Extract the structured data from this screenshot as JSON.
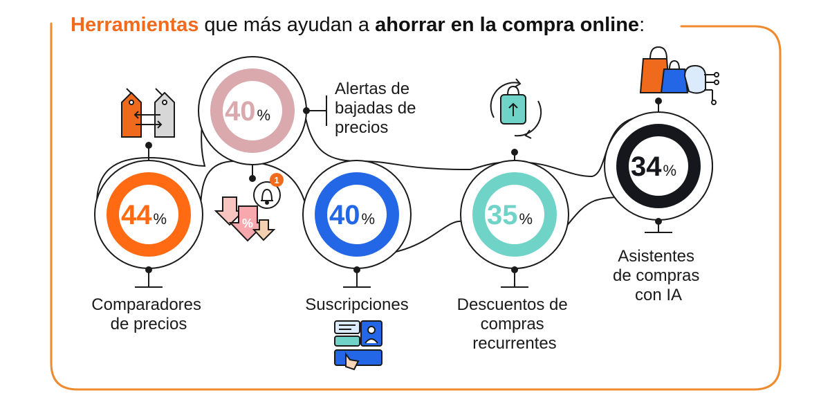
{
  "title": {
    "part1": "Herramientas",
    "part2": " que más ayudan a ",
    "part3": "ahorrar en la compra online",
    "part4": ":"
  },
  "colors": {
    "frame": "#f08a2e",
    "title_highlight": "#f26a1b",
    "comparadores": "#ff6a13",
    "alertas": "#d9a9ae",
    "suscripciones": "#2467e6",
    "descuentos": "#6fd3c8",
    "asistentes": "#16171c",
    "path": "#1a1a1a"
  },
  "items": [
    {
      "id": "comparadores",
      "value": "44",
      "unit": "%",
      "label": [
        "Comparadores",
        "de precios"
      ],
      "icon": "price-tags-compare-icon"
    },
    {
      "id": "alertas",
      "value": "40",
      "unit": "%",
      "label": [
        "Alertas de",
        "bajadas de",
        "precios"
      ],
      "icon": "price-drop-alert-icon",
      "badge": "1"
    },
    {
      "id": "suscripciones",
      "value": "40",
      "unit": "%",
      "label": [
        "Suscripciones"
      ],
      "icon": "subscription-card-icon"
    },
    {
      "id": "descuentos",
      "value": "35",
      "unit": "%",
      "label": [
        "Descuentos de",
        "compras",
        "recurrentes"
      ],
      "icon": "recurring-bag-icon"
    },
    {
      "id": "asistentes",
      "value": "34",
      "unit": "%",
      "label": [
        "Asistentes",
        "de compras",
        "con IA"
      ],
      "icon": "ai-shopping-assistant-icon"
    }
  ]
}
